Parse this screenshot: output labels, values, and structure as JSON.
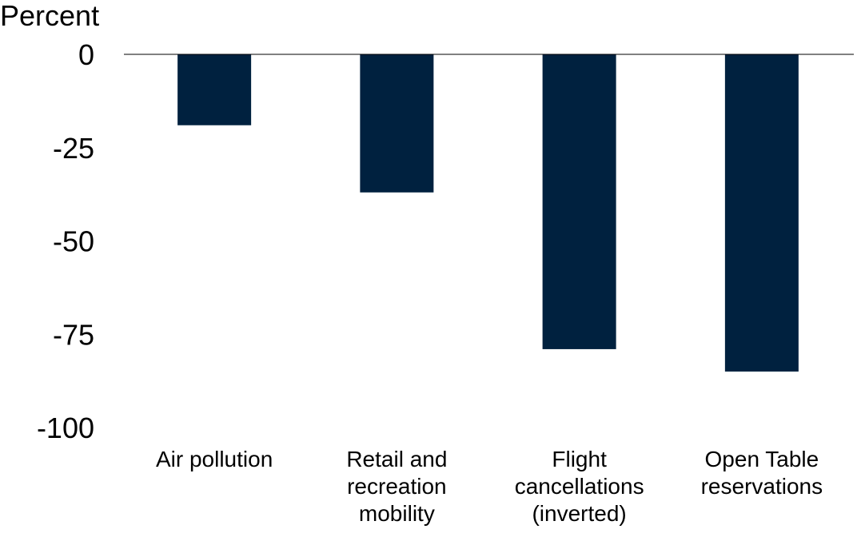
{
  "chart_data": {
    "type": "bar",
    "unit_label": "Percent",
    "categories": [
      [
        "Air pollution"
      ],
      [
        "Retail and",
        "recreation",
        "mobility"
      ],
      [
        "Flight",
        "cancellations",
        "(inverted)"
      ],
      [
        "Open Table",
        "reservations"
      ]
    ],
    "values": [
      -19,
      -37,
      -79,
      -85
    ],
    "ylim": [
      -100,
      0
    ],
    "yticks": [
      "0",
      "-25",
      "-50",
      "-75",
      "-100"
    ],
    "ytick_values": [
      0,
      -25,
      -50,
      -75,
      -100
    ],
    "bar_color": "#00213f",
    "grid": false
  }
}
